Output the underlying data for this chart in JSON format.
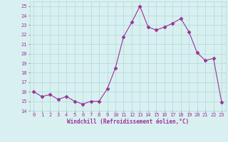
{
  "hours": [
    0,
    1,
    2,
    3,
    4,
    5,
    6,
    7,
    8,
    9,
    10,
    11,
    12,
    13,
    14,
    15,
    16,
    17,
    18,
    19,
    20,
    21,
    22,
    23
  ],
  "values": [
    16.0,
    15.5,
    15.7,
    15.2,
    15.5,
    15.0,
    14.7,
    15.0,
    15.0,
    16.3,
    18.5,
    21.8,
    23.3,
    25.0,
    22.8,
    22.5,
    22.8,
    23.2,
    23.7,
    22.3,
    20.1,
    19.3,
    19.5,
    14.9
  ],
  "line_color": "#993399",
  "marker": "D",
  "marker_size": 2.5,
  "bg_color": "#d8f0f0",
  "grid_color": "#b0d8d8",
  "xlabel": "Windchill (Refroidissement éolien,°C)",
  "xlabel_color": "#993399",
  "tick_color": "#993399",
  "ylim": [
    14,
    25.5
  ],
  "xlim": [
    -0.5,
    23.5
  ],
  "yticks": [
    14,
    15,
    16,
    17,
    18,
    19,
    20,
    21,
    22,
    23,
    24,
    25
  ],
  "ytick_labels": [
    "14",
    "15",
    "16",
    "17",
    "18",
    "19",
    "20",
    "21",
    "22",
    "23",
    "24",
    "25"
  ],
  "xticks": [
    0,
    1,
    2,
    3,
    4,
    5,
    6,
    7,
    8,
    9,
    10,
    11,
    12,
    13,
    14,
    15,
    16,
    17,
    18,
    19,
    20,
    21,
    22,
    23
  ]
}
